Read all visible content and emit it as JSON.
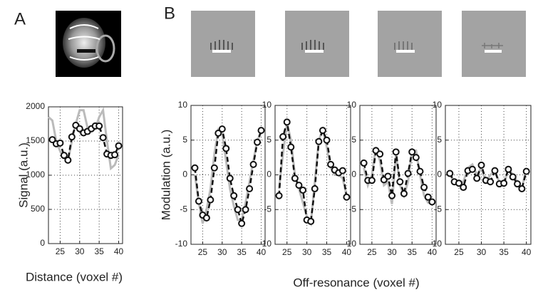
{
  "panel_labels": [
    "A",
    "B"
  ],
  "panel_b_xlabel": "Off-resonance (voxel #)",
  "chart_data": [
    {
      "type": "line",
      "ylabel": "Signal (a.u.)",
      "xlabel": "Distance (voxel #)",
      "xlim": [
        22,
        41
      ],
      "ylim": [
        0,
        2000
      ],
      "xticks": [
        25,
        30,
        35,
        40
      ],
      "yticks": [
        0,
        500,
        1000,
        1500,
        2000
      ],
      "grid": true,
      "series": [
        {
          "color": "#bbbbbb",
          "line_style": "solid",
          "x": [
            22,
            23,
            24,
            25,
            26,
            27,
            28,
            29,
            30,
            31,
            32,
            33,
            34,
            35,
            36,
            37,
            38,
            39,
            40
          ],
          "values": [
            1850,
            1800,
            1500,
            1350,
            1250,
            1200,
            1500,
            1750,
            1950,
            1950,
            1700,
            1650,
            1680,
            1850,
            1950,
            1500,
            1100,
            1150,
            1300
          ]
        },
        {
          "color": "#111111",
          "line_style": "dashed",
          "marker": "circle",
          "x": [
            23,
            24,
            25,
            26,
            27,
            28,
            29,
            30,
            31,
            32,
            33,
            34,
            35,
            36,
            37,
            38,
            39,
            40
          ],
          "values": [
            1520,
            1460,
            1470,
            1290,
            1220,
            1560,
            1730,
            1680,
            1620,
            1640,
            1680,
            1720,
            1720,
            1550,
            1310,
            1290,
            1300,
            1430
          ]
        }
      ]
    },
    {
      "type": "line",
      "ylabel": "Modulation (a.u.)",
      "xlim": [
        22,
        41
      ],
      "ylim": [
        -10,
        10
      ],
      "xticks": [
        25,
        30,
        35,
        40
      ],
      "yticks": [
        -10,
        -5,
        0,
        5,
        10
      ],
      "grid": true,
      "series": [
        {
          "color": "#bbbbbb",
          "line_style": "solid",
          "x": [
            23,
            24,
            25,
            26,
            27,
            28,
            29,
            30,
            31,
            32,
            33,
            34,
            35,
            36,
            37,
            38,
            39,
            40
          ],
          "values": [
            0,
            -4,
            -7,
            -5,
            -2,
            3,
            6.5,
            6,
            2,
            -2,
            -4.5,
            -6.5,
            -6.5,
            -4,
            -1,
            2,
            5,
            6
          ]
        },
        {
          "color": "#111111",
          "line_style": "dashed",
          "marker": "circle",
          "x": [
            23,
            24,
            25,
            26,
            27,
            28,
            29,
            30,
            31,
            32,
            33,
            34,
            35,
            36,
            37,
            38,
            39,
            40
          ],
          "values": [
            1,
            -3.8,
            -5.8,
            -6.2,
            -3.6,
            1,
            6,
            6.6,
            3.8,
            -0.5,
            -3,
            -5,
            -7,
            -5,
            -2,
            1.5,
            4.7,
            6.4
          ]
        }
      ]
    },
    {
      "type": "line",
      "xlim": [
        22,
        41
      ],
      "ylim": [
        -10,
        10
      ],
      "xticks": [
        25,
        30,
        35,
        40
      ],
      "yticks": [
        -10,
        -5,
        0,
        5,
        10
      ],
      "grid": true,
      "series": [
        {
          "color": "#bbbbbb",
          "line_style": "solid",
          "x": [
            23,
            24,
            25,
            26,
            27,
            28,
            29,
            30,
            31,
            32,
            33,
            34,
            35,
            36,
            37,
            38,
            39,
            40
          ],
          "values": [
            -2,
            3,
            7.5,
            5,
            0,
            -2,
            -4,
            -6,
            -7,
            -1,
            5,
            6.5,
            4,
            1,
            0,
            0,
            -0.5,
            -3
          ]
        },
        {
          "color": "#111111",
          "line_style": "dashed",
          "marker": "circle",
          "x": [
            23,
            24,
            25,
            26,
            27,
            28,
            29,
            30,
            31,
            32,
            33,
            34,
            35,
            36,
            37,
            38,
            39,
            40
          ],
          "values": [
            -3,
            5.5,
            7.6,
            4,
            -0.5,
            -1.5,
            -2.2,
            -6.5,
            -6.7,
            -2,
            4.8,
            6.4,
            5,
            1.5,
            0.7,
            0.3,
            0.6,
            -3.2
          ]
        }
      ]
    },
    {
      "type": "line",
      "xlim": [
        22,
        41
      ],
      "ylim": [
        -10,
        10
      ],
      "xticks": [
        25,
        30,
        35,
        40
      ],
      "yticks": [
        -10,
        -5,
        0,
        5,
        10
      ],
      "grid": true,
      "series": [
        {
          "color": "#bbbbbb",
          "line_style": "solid",
          "x": [
            23,
            24,
            25,
            26,
            27,
            28,
            29,
            30,
            31,
            32,
            33,
            34,
            35,
            36,
            37,
            38,
            39,
            40
          ],
          "values": [
            1,
            -1.5,
            0,
            4,
            2,
            -1.5,
            -1,
            -4.2,
            3,
            -1.5,
            -3,
            -1,
            3.5,
            3.5,
            0,
            -3,
            -4,
            -4
          ]
        },
        {
          "color": "#111111",
          "line_style": "dashed",
          "marker": "circle",
          "x": [
            23,
            24,
            25,
            26,
            27,
            28,
            29,
            30,
            31,
            32,
            33,
            34,
            35,
            36,
            37,
            38,
            39,
            40
          ],
          "values": [
            1.7,
            -0.8,
            -0.8,
            3.5,
            3,
            -0.7,
            -0.2,
            -3,
            3.3,
            -1,
            -2.7,
            0.2,
            3.3,
            2.5,
            0.5,
            -1.8,
            -3.2,
            -3.9
          ]
        }
      ]
    },
    {
      "type": "line",
      "xlim": [
        22,
        41
      ],
      "ylim": [
        -10,
        10
      ],
      "xticks": [
        25,
        30,
        35,
        40
      ],
      "yticks": [
        -10,
        -5,
        0,
        5,
        10
      ],
      "grid": true,
      "series": [
        {
          "color": "#bbbbbb",
          "line_style": "solid",
          "x": [
            23,
            24,
            25,
            26,
            27,
            28,
            29,
            30,
            31,
            32,
            33,
            34,
            35,
            36,
            37,
            38,
            39,
            40
          ],
          "values": [
            0,
            -1,
            -1.5,
            -1,
            1,
            1.5,
            0,
            1,
            -1,
            0,
            0.5,
            -1,
            -1.5,
            1,
            0,
            -1,
            -2,
            1
          ]
        },
        {
          "color": "#111111",
          "line_style": "dashed",
          "marker": "circle",
          "x": [
            23,
            24,
            25,
            26,
            27,
            28,
            29,
            30,
            31,
            32,
            33,
            34,
            35,
            36,
            37,
            38,
            39,
            40
          ],
          "values": [
            0.2,
            -1,
            -1.2,
            -1.8,
            0.6,
            0.8,
            -0.5,
            1.4,
            -0.8,
            -1,
            0.6,
            -1.3,
            -1.2,
            0.8,
            -0.3,
            -1.3,
            -2,
            0.5
          ]
        }
      ]
    }
  ]
}
